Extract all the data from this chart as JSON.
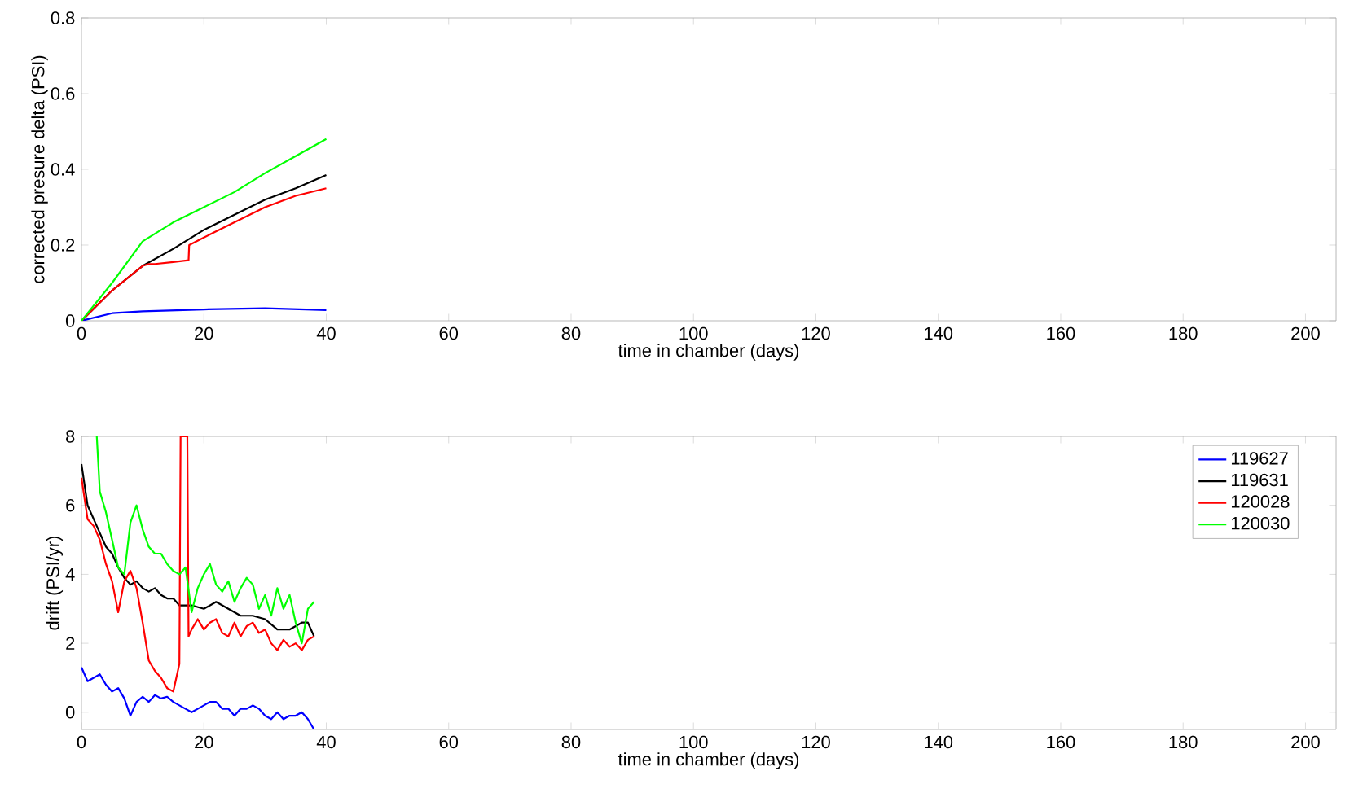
{
  "chart_data": [
    {
      "type": "line",
      "xlabel": "time in chamber (days)",
      "ylabel": "corrected presure delta (PSI)",
      "xlim": [
        0,
        205
      ],
      "ylim": [
        0,
        0.8
      ],
      "xticks": [
        0,
        20,
        40,
        60,
        80,
        100,
        120,
        140,
        160,
        180,
        200
      ],
      "yticks": [
        0,
        0.2,
        0.4,
        0.6,
        0.8
      ],
      "grid": false,
      "legend": false,
      "marker": "none",
      "line_style": "solid",
      "series": [
        {
          "color": "#0000ff",
          "x": [
            0,
            5,
            10,
            20,
            30,
            40
          ],
          "values": [
            0,
            0.02,
            0.025,
            0.03,
            0.033,
            0.028
          ]
        },
        {
          "color": "#000000",
          "x": [
            0,
            5,
            10,
            15,
            20,
            25,
            30,
            35,
            40
          ],
          "values": [
            0,
            0.08,
            0.145,
            0.19,
            0.24,
            0.28,
            0.32,
            0.35,
            0.385
          ]
        },
        {
          "color": "#ff0000",
          "x": [
            0,
            5,
            10,
            11,
            12,
            15,
            17.5,
            17.6,
            20,
            25,
            30,
            35,
            40
          ],
          "values": [
            0,
            0.08,
            0.145,
            0.15,
            0.15,
            0.155,
            0.16,
            0.2,
            0.22,
            0.26,
            0.3,
            0.33,
            0.35
          ]
        },
        {
          "color": "#00ff00",
          "x": [
            0,
            5,
            10,
            15,
            20,
            25,
            30,
            35,
            40
          ],
          "values": [
            0,
            0.1,
            0.21,
            0.26,
            0.3,
            0.34,
            0.39,
            0.435,
            0.48
          ]
        }
      ]
    },
    {
      "type": "line",
      "xlabel": "time in chamber (days)",
      "ylabel": "drift (PSI/yr)",
      "xlim": [
        0,
        205
      ],
      "ylim": [
        -0.5,
        8
      ],
      "xticks": [
        0,
        20,
        40,
        60,
        80,
        100,
        120,
        140,
        160,
        180,
        200
      ],
      "yticks": [
        0,
        2,
        4,
        6,
        8
      ],
      "grid": false,
      "legend": "top right",
      "marker": "none",
      "line_style": "solid",
      "series": [
        {
          "name": "119627",
          "color": "#0000ff",
          "x": [
            0,
            1,
            2,
            3,
            4,
            5,
            6,
            7,
            8,
            9,
            10,
            11,
            12,
            13,
            14,
            15,
            16,
            17,
            18,
            19,
            20,
            21,
            22,
            23,
            24,
            25,
            26,
            27,
            28,
            29,
            30,
            31,
            32,
            33,
            34,
            35,
            36,
            37,
            38
          ],
          "values": [
            1.3,
            0.9,
            1.0,
            1.1,
            0.8,
            0.6,
            0.7,
            0.4,
            -0.1,
            0.3,
            0.45,
            0.3,
            0.5,
            0.4,
            0.45,
            0.3,
            0.2,
            0.1,
            0.0,
            0.1,
            0.2,
            0.3,
            0.3,
            0.1,
            0.1,
            -0.1,
            0.1,
            0.1,
            0.2,
            0.1,
            -0.1,
            -0.2,
            0.0,
            -0.2,
            -0.1,
            -0.1,
            0.0,
            -0.2,
            -0.5
          ]
        },
        {
          "name": "119631",
          "color": "#000000",
          "x": [
            0,
            0.5,
            1,
            2,
            3,
            4,
            5,
            6,
            7,
            8,
            9,
            10,
            11,
            12,
            13,
            14,
            15,
            16,
            18,
            20,
            22,
            24,
            26,
            28,
            30,
            32,
            34,
            36,
            37,
            38
          ],
          "values": [
            7.2,
            6.6,
            6.0,
            5.6,
            5.2,
            4.8,
            4.6,
            4.2,
            3.9,
            3.7,
            3.8,
            3.6,
            3.5,
            3.6,
            3.4,
            3.3,
            3.3,
            3.1,
            3.1,
            3.0,
            3.2,
            3.0,
            2.8,
            2.8,
            2.7,
            2.4,
            2.4,
            2.6,
            2.6,
            2.2
          ]
        },
        {
          "name": "120028",
          "color": "#ff0000",
          "x": [
            0,
            1,
            2,
            3,
            4,
            5,
            6,
            7,
            8,
            9,
            10,
            11,
            12,
            13,
            14,
            15,
            15.5,
            16,
            16.2,
            17,
            17.3,
            17.5,
            18,
            19,
            20,
            21,
            22,
            23,
            24,
            25,
            26,
            27,
            28,
            29,
            30,
            31,
            32,
            33,
            34,
            35,
            36,
            37,
            38
          ],
          "values": [
            6.8,
            5.6,
            5.4,
            5.0,
            4.3,
            3.8,
            2.9,
            3.8,
            4.1,
            3.6,
            2.6,
            1.5,
            1.2,
            1.0,
            0.7,
            0.6,
            1.0,
            1.4,
            8.0,
            8.0,
            8.0,
            2.2,
            2.4,
            2.7,
            2.4,
            2.6,
            2.7,
            2.3,
            2.2,
            2.6,
            2.2,
            2.5,
            2.6,
            2.3,
            2.4,
            2.0,
            1.8,
            2.1,
            1.9,
            2.0,
            1.8,
            2.1,
            2.2
          ]
        },
        {
          "name": "120030",
          "color": "#00ff00",
          "x": [
            2.5,
            3,
            4,
            5,
            6,
            7,
            8,
            9,
            10,
            11,
            12,
            13,
            14,
            15,
            16,
            17,
            18,
            19,
            20,
            21,
            22,
            23,
            24,
            25,
            26,
            27,
            28,
            29,
            30,
            31,
            32,
            33,
            34,
            35,
            36,
            37,
            38
          ],
          "values": [
            8.0,
            6.4,
            5.8,
            5.0,
            4.2,
            4.0,
            5.5,
            6.0,
            5.3,
            4.8,
            4.6,
            4.6,
            4.3,
            4.1,
            4.0,
            4.2,
            2.9,
            3.6,
            4.0,
            4.3,
            3.7,
            3.5,
            3.8,
            3.2,
            3.6,
            3.9,
            3.7,
            3.0,
            3.4,
            2.8,
            3.6,
            3.0,
            3.4,
            2.6,
            2.0,
            3.0,
            3.2
          ]
        }
      ]
    }
  ]
}
